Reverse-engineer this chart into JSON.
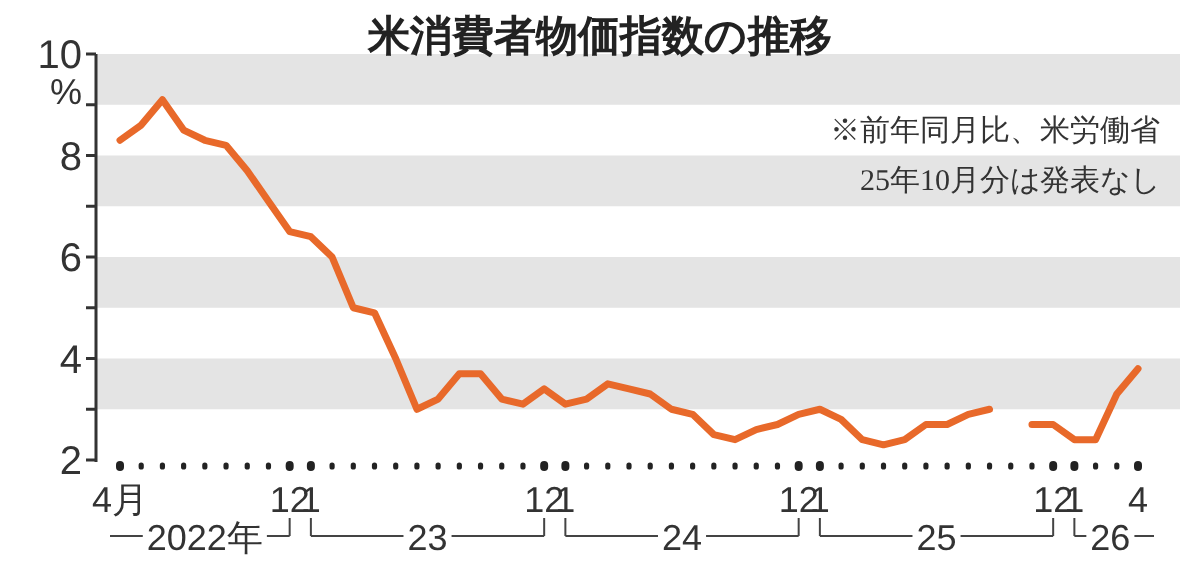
{
  "chart_data": {
    "type": "line",
    "title": "米消費者物価指数の推移",
    "ylabel": "%",
    "x": [
      "2022-04",
      "2022-05",
      "2022-06",
      "2022-07",
      "2022-08",
      "2022-09",
      "2022-10",
      "2022-11",
      "2022-12",
      "2023-01",
      "2023-02",
      "2023-03",
      "2023-04",
      "2023-05",
      "2023-06",
      "2023-07",
      "2023-08",
      "2023-09",
      "2023-10",
      "2023-11",
      "2023-12",
      "2024-01",
      "2024-02",
      "2024-03",
      "2024-04",
      "2024-05",
      "2024-06",
      "2024-07",
      "2024-08",
      "2024-09",
      "2024-10",
      "2024-11",
      "2024-12",
      "2025-01",
      "2025-02",
      "2025-03",
      "2025-04",
      "2025-05",
      "2025-06",
      "2025-07",
      "2025-08",
      "2025-09",
      "2025-10",
      "2025-11",
      "2025-12",
      "2026-01",
      "2026-02",
      "2026-03",
      "2026-04"
    ],
    "series": [
      {
        "color": "#e8692a",
        "values": [
          8.3,
          8.6,
          9.1,
          8.5,
          8.3,
          8.2,
          7.7,
          7.1,
          6.5,
          6.4,
          6.0,
          5.0,
          4.9,
          4.0,
          3.0,
          3.2,
          3.7,
          3.7,
          3.2,
          3.1,
          3.4,
          3.1,
          3.2,
          3.5,
          3.4,
          3.3,
          3.0,
          2.9,
          2.5,
          2.4,
          2.6,
          2.7,
          2.9,
          3.0,
          2.8,
          2.4,
          2.3,
          2.4,
          2.7,
          2.7,
          2.9,
          3.0,
          null,
          2.7,
          2.7,
          2.4,
          2.4,
          3.3,
          3.8
        ]
      }
    ],
    "xticks": [
      {
        "value": "2022-04",
        "label": "4月"
      },
      {
        "value": "2022-05",
        "label": null
      },
      {
        "value": "2022-06",
        "label": null
      },
      {
        "value": "2022-07",
        "label": null
      },
      {
        "value": "2022-08",
        "label": null
      },
      {
        "value": "2022-09",
        "label": null
      },
      {
        "value": "2022-10",
        "label": null
      },
      {
        "value": "2022-11",
        "label": null
      },
      {
        "value": "2022-12",
        "label": "12"
      },
      {
        "value": "2023-01",
        "label": "1"
      },
      {
        "value": "2023-02",
        "label": null
      },
      {
        "value": "2023-03",
        "label": null
      },
      {
        "value": "2023-04",
        "label": null
      },
      {
        "value": "2023-05",
        "label": null
      },
      {
        "value": "2023-06",
        "label": null
      },
      {
        "value": "2023-07",
        "label": null
      },
      {
        "value": "2023-08",
        "label": null
      },
      {
        "value": "2023-09",
        "label": null
      },
      {
        "value": "2023-10",
        "label": null
      },
      {
        "value": "2023-11",
        "label": null
      },
      {
        "value": "2023-12",
        "label": "12"
      },
      {
        "value": "2024-01",
        "label": "1"
      },
      {
        "value": "2024-02",
        "label": null
      },
      {
        "value": "2024-03",
        "label": null
      },
      {
        "value": "2024-04",
        "label": null
      },
      {
        "value": "2024-05",
        "label": null
      },
      {
        "value": "2024-06",
        "label": null
      },
      {
        "value": "2024-07",
        "label": null
      },
      {
        "value": "2024-08",
        "label": null
      },
      {
        "value": "2024-09",
        "label": null
      },
      {
        "value": "2024-10",
        "label": null
      },
      {
        "value": "2024-11",
        "label": null
      },
      {
        "value": "2024-12",
        "label": "12"
      },
      {
        "value": "2025-01",
        "label": "1"
      },
      {
        "value": "2025-02",
        "label": null
      },
      {
        "value": "2025-03",
        "label": null
      },
      {
        "value": "2025-04",
        "label": null
      },
      {
        "value": "2025-05",
        "label": null
      },
      {
        "value": "2025-06",
        "label": null
      },
      {
        "value": "2025-07",
        "label": null
      },
      {
        "value": "2025-08",
        "label": null
      },
      {
        "value": "2025-09",
        "label": null
      },
      {
        "value": "2025-10",
        "label": null
      },
      {
        "value": "2025-11",
        "label": null
      },
      {
        "value": "2025-12",
        "label": "12"
      },
      {
        "value": "2026-01",
        "label": "1"
      },
      {
        "value": "2026-02",
        "label": null
      },
      {
        "value": "2026-03",
        "label": null
      },
      {
        "value": "2026-04",
        "label": "4"
      }
    ],
    "xlim": [
      "2022-04",
      "2026-04"
    ],
    "ylim": [
      2,
      10
    ],
    "yticks": [
      2,
      {
        "value": 3,
        "label": null
      },
      4,
      {
        "value": 5,
        "label": null
      },
      6,
      {
        "value": 7,
        "label": null
      },
      8,
      {
        "value": 9,
        "label": null
      },
      10
    ],
    "bands": [
      {
        "axis": "y",
        "from": 3,
        "to": 4,
        "color": "#e4e4e4"
      },
      {
        "axis": "y",
        "from": 5,
        "to": 6,
        "color": "#e4e4e4"
      },
      {
        "axis": "y",
        "from": 7,
        "to": 8,
        "color": "#e4e4e4"
      },
      {
        "axis": "y",
        "from": 9,
        "to": 10,
        "color": "#e4e4e4"
      }
    ],
    "annotations": [
      "※前年同月比、米労働省",
      "25年10月分は発表なし",
      "2022年",
      "23",
      "24",
      "25",
      "26"
    ],
    "line_style": "solid",
    "marker": "none"
  }
}
